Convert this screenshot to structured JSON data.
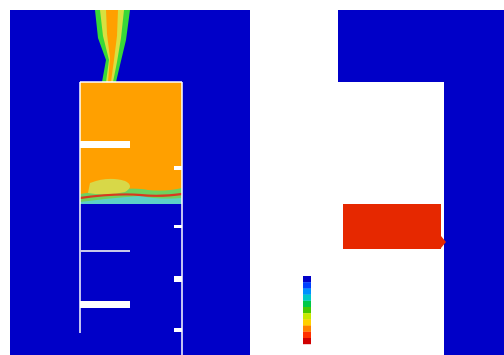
{
  "colors": {
    "background": "#ffffff",
    "fluid_low": "#0000c8",
    "fluid_high": "#ffa000",
    "hot_block": "#e62800",
    "plume_edge_green": "#38d838",
    "plume_edge_yellow": "#d8e040",
    "plume_core_yellow": "#f0f000",
    "wall": "#ffffff",
    "interface_red": "#d83820",
    "interface_yellow": "#d8d848",
    "interface_green": "#6fd060",
    "interface_cyan": "#5cd0c8"
  },
  "legend": {
    "swatch_colors": [
      "#0000c8",
      "#0040ff",
      "#0090ff",
      "#00c8c8",
      "#00c848",
      "#48c800",
      "#c8e800",
      "#ffd000",
      "#ff8000",
      "#ff3000",
      "#d00000"
    ],
    "tick_labels": [
      "",
      "",
      "",
      "",
      "",
      "",
      "",
      "",
      "",
      "",
      ""
    ]
  }
}
